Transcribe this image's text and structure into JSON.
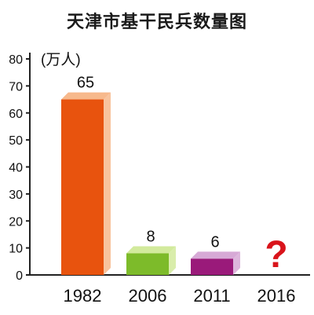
{
  "chart_data": {
    "type": "bar",
    "title": "天津市基干民兵数量图",
    "ylabel": "(万人)",
    "xlabel": "",
    "categories": [
      "1982",
      "2006",
      "2011",
      "2016"
    ],
    "values": [
      65,
      8,
      6,
      null
    ],
    "data_labels": [
      "65",
      "8",
      "6",
      "?"
    ],
    "ylim": [
      0,
      80
    ],
    "yticks": [
      "0",
      "10",
      "20",
      "30",
      "40",
      "50",
      "60",
      "70",
      "80"
    ],
    "grid": false,
    "legend": "none",
    "style": "3d-bars",
    "colors": [
      "#e8530e",
      "#7dbb2a",
      "#9a1a7a",
      "#d9141b"
    ],
    "colors_top": [
      "#f7b98c",
      "#d2ea9c",
      "#d7a9d6",
      "#d9141b"
    ]
  }
}
